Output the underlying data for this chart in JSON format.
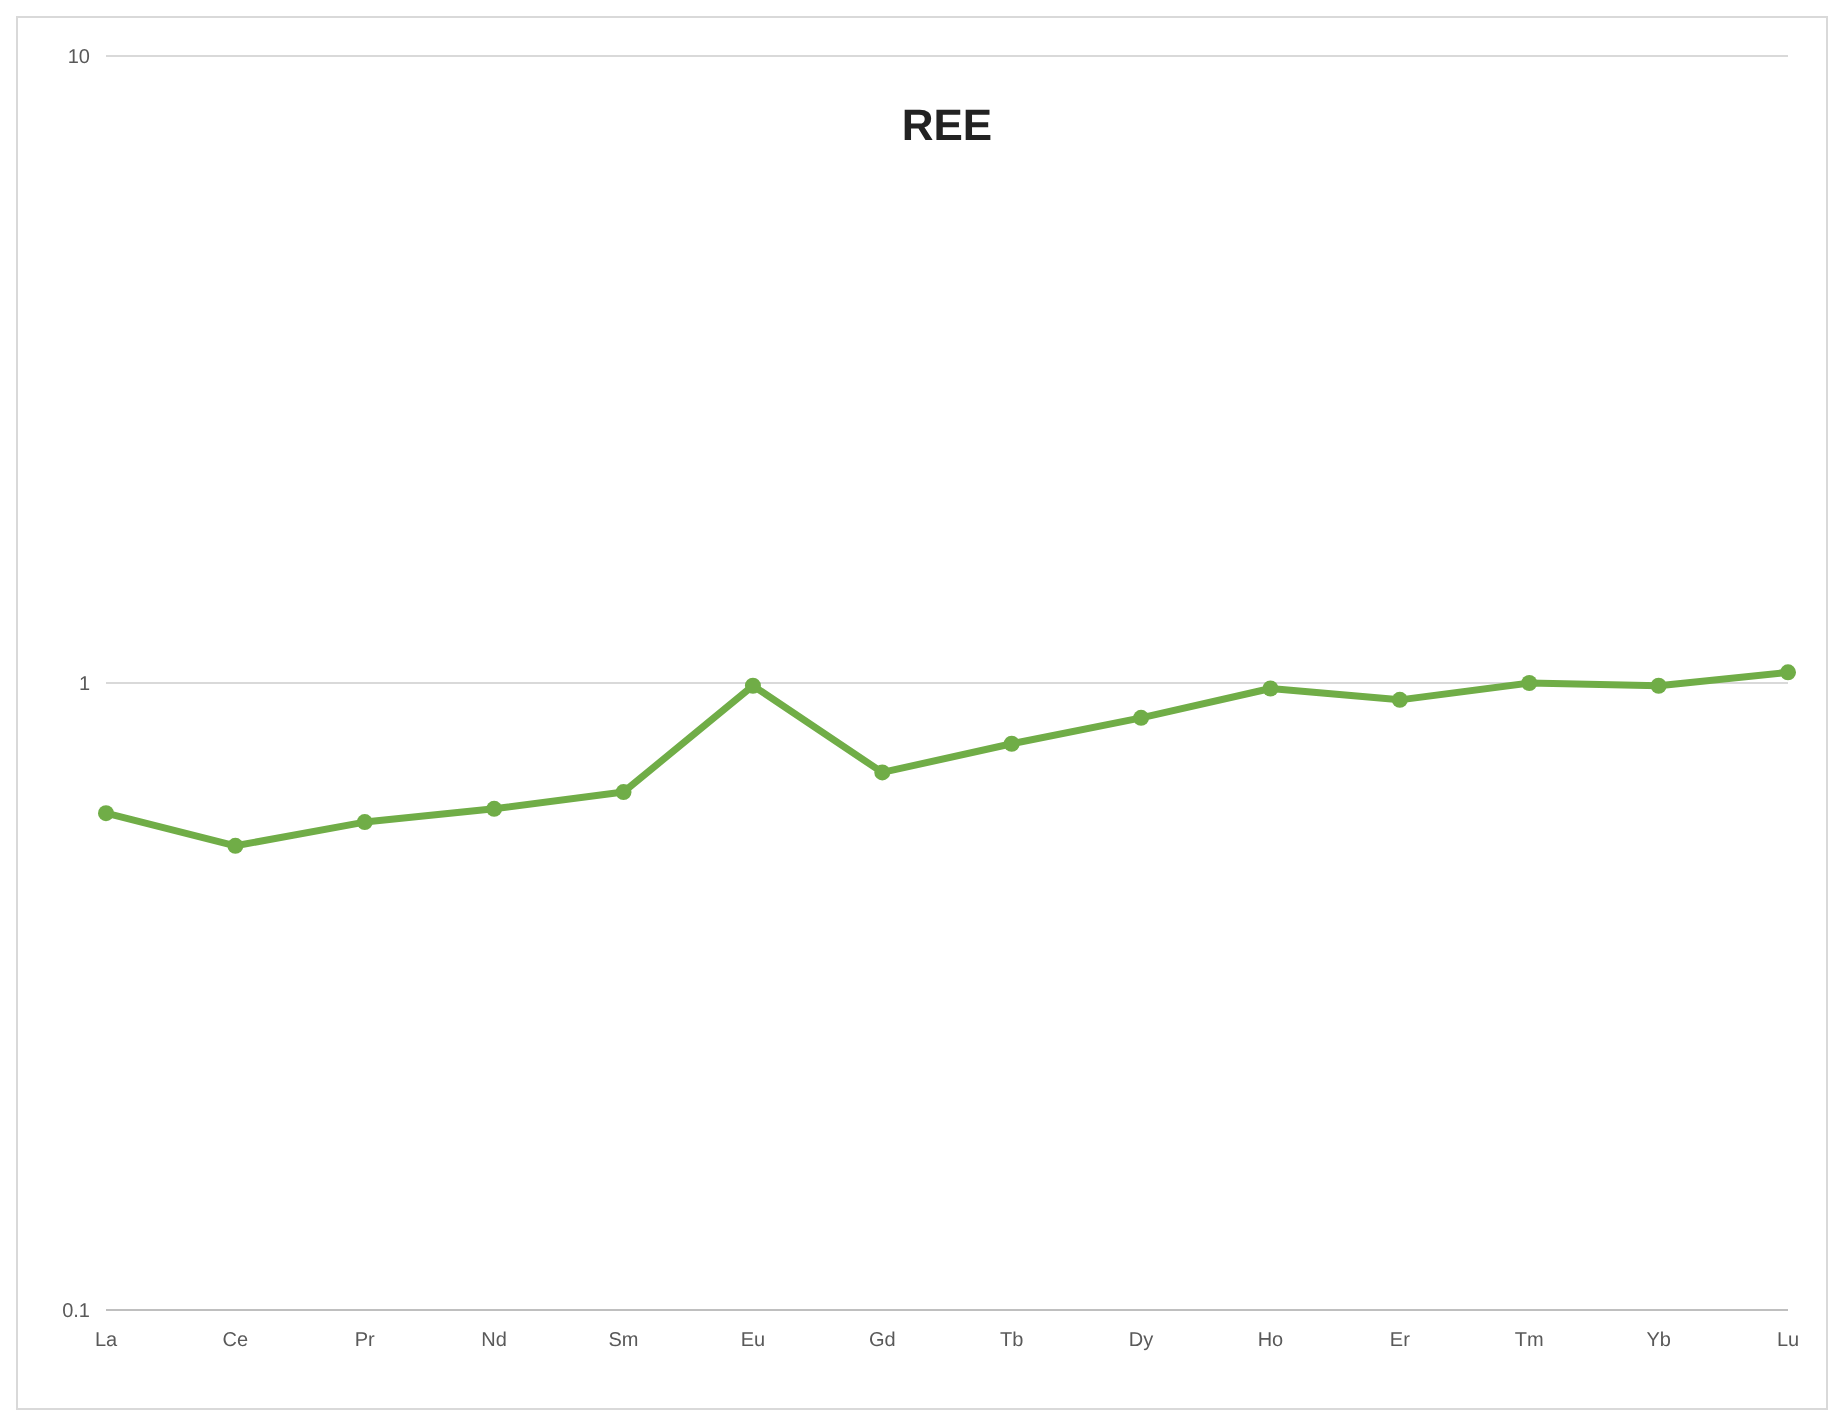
{
  "chart_data": {
    "type": "line",
    "title": "REE",
    "categories": [
      "La",
      "Ce",
      "Pr",
      "Nd",
      "Sm",
      "Eu",
      "Gd",
      "Tb",
      "Dy",
      "Ho",
      "Er",
      "Tm",
      "Yb",
      "Lu"
    ],
    "series": [
      {
        "color": "#70ad47",
        "values": [
          0.62,
          0.55,
          0.6,
          0.63,
          0.67,
          0.99,
          0.72,
          0.8,
          0.88,
          0.98,
          0.94,
          1.0,
          0.99,
          1.04
        ]
      }
    ],
    "log": true,
    "ylim": [
      0.1,
      10
    ],
    "yticks": [
      0.1,
      1,
      10
    ],
    "grid": "y",
    "marker": "circle",
    "line_style": "solid"
  }
}
